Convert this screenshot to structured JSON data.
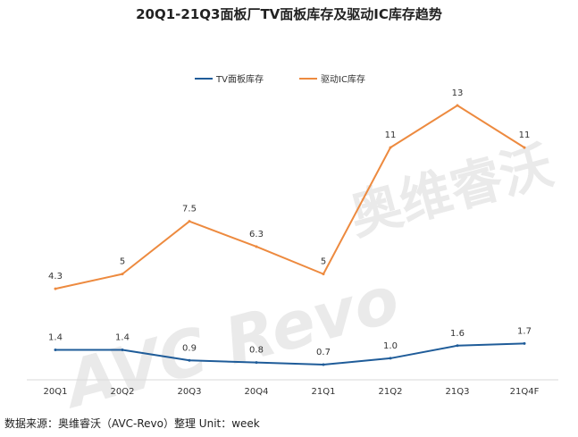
{
  "chart_data": {
    "type": "line",
    "title": "20Q1-21Q3面板厂TV面板库存及驱动IC库存趋势",
    "categories": [
      "20Q1",
      "20Q2",
      "20Q3",
      "20Q4",
      "21Q1",
      "21Q2",
      "21Q3",
      "21Q4F"
    ],
    "series": [
      {
        "name": "TV面板库存",
        "color": "#1f5c99",
        "values": [
          1.4,
          1.4,
          0.9,
          0.8,
          0.7,
          1.0,
          1.6,
          1.7
        ],
        "labels": [
          "1.4",
          "1.4",
          "0.9",
          "0.8",
          "0.7",
          "1.0",
          "1.6",
          "1.7"
        ]
      },
      {
        "name": "驱动IC库存",
        "color": "#ed8a3f",
        "values": [
          4.3,
          5,
          7.5,
          6.3,
          5,
          11,
          13,
          11
        ],
        "labels": [
          "4.3",
          "5",
          "7.5",
          "6.3",
          "5",
          "11",
          "13",
          "11"
        ]
      }
    ],
    "xlabel": "",
    "ylabel": "",
    "ylim": [
      0,
      13
    ],
    "legend": "top-left",
    "watermark": "AVC Revo 奥维睿沃"
  },
  "source_note": "数据来源：奥维睿沃（AVC-Revo）整理   Unit：week"
}
